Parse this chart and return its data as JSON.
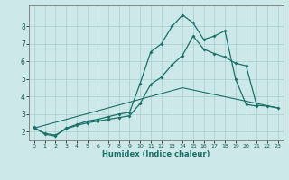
{
  "xlabel": "Humidex (Indice chaleur)",
  "bg_color": "#cce8e8",
  "grid_color": "#aacccc",
  "line_color": "#1a7068",
  "xlim": [
    -0.5,
    23.5
  ],
  "ylim": [
    1.5,
    9.2
  ],
  "xticks": [
    0,
    1,
    2,
    3,
    4,
    5,
    6,
    7,
    8,
    9,
    10,
    11,
    12,
    13,
    14,
    15,
    16,
    17,
    18,
    19,
    20,
    21,
    22,
    23
  ],
  "yticks": [
    2,
    3,
    4,
    5,
    6,
    7,
    8
  ],
  "line1_x": [
    0,
    1,
    2,
    3,
    4,
    5,
    6,
    7,
    8,
    9,
    10,
    11,
    12,
    13,
    14,
    15,
    16,
    17,
    18,
    19,
    20,
    21
  ],
  "line1_y": [
    2.25,
    1.85,
    1.75,
    2.2,
    2.4,
    2.6,
    2.7,
    2.85,
    3.0,
    3.1,
    4.75,
    6.55,
    7.0,
    8.0,
    8.65,
    8.2,
    7.25,
    7.45,
    7.75,
    5.0,
    3.55,
    3.45
  ],
  "line2_x": [
    0,
    1,
    2,
    3,
    4,
    5,
    6,
    7,
    8,
    9,
    10,
    11,
    12,
    13,
    14,
    15,
    16,
    17,
    18,
    19,
    20,
    21,
    22,
    23
  ],
  "line2_y": [
    2.2,
    1.9,
    1.8,
    2.15,
    2.35,
    2.5,
    2.6,
    2.7,
    2.8,
    2.9,
    3.6,
    4.7,
    5.1,
    5.8,
    6.35,
    7.45,
    6.7,
    6.45,
    6.25,
    5.9,
    5.75,
    3.5,
    3.45,
    3.35
  ],
  "line3_x": [
    0,
    14,
    23
  ],
  "line3_y": [
    2.2,
    4.5,
    3.35
  ]
}
